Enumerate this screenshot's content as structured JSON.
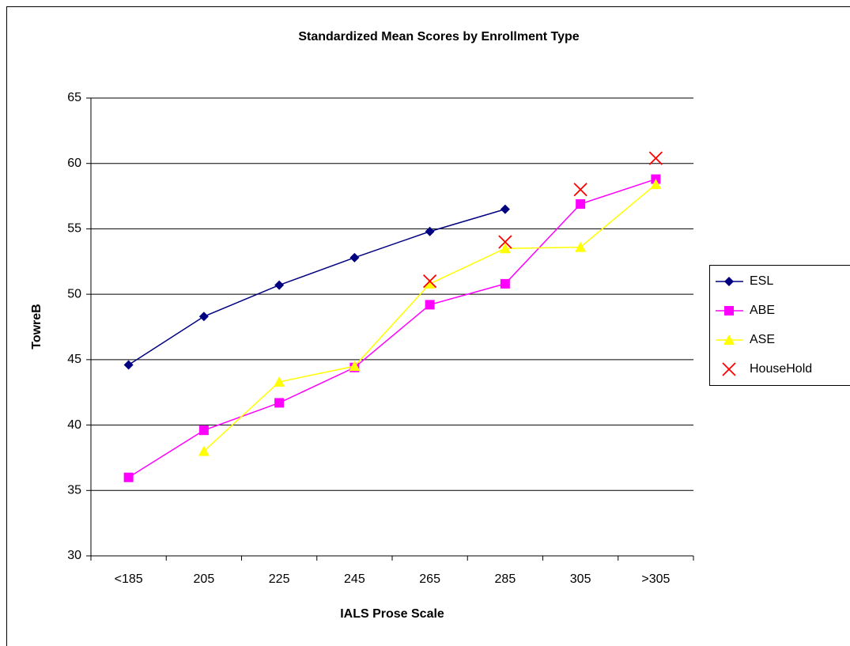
{
  "chart_data": {
    "type": "line",
    "title": "Standardized Mean Scores by Enrollment Type",
    "x_label": "IALS Prose Scale",
    "y_label": "TowreB",
    "categories": [
      "<185",
      "205",
      "225",
      "245",
      "265",
      "285",
      "305",
      ">305"
    ],
    "series": [
      {
        "name": "ESL",
        "color": "#000080",
        "marker": "diamond",
        "line": true,
        "values": [
          44.6,
          48.3,
          50.7,
          52.8,
          54.8,
          56.5,
          null,
          null
        ]
      },
      {
        "name": "ABE",
        "color": "#ff00ff",
        "marker": "square",
        "line": true,
        "values": [
          36.0,
          39.6,
          41.7,
          44.4,
          49.2,
          50.8,
          56.9,
          58.8
        ]
      },
      {
        "name": "ASE",
        "color": "#ffff00",
        "marker": "triangle",
        "line": true,
        "values": [
          null,
          38.0,
          43.3,
          44.5,
          50.8,
          53.5,
          53.6,
          58.4
        ]
      },
      {
        "name": "HouseHold",
        "color": "#ff0000",
        "marker": "x",
        "line": false,
        "values": [
          null,
          null,
          null,
          null,
          51.0,
          54.0,
          58.0,
          60.4
        ]
      }
    ],
    "ylim": [
      30,
      65
    ],
    "yticks": [
      30,
      35,
      40,
      45,
      50,
      55,
      60,
      65
    ],
    "grid": true,
    "legend": "right"
  }
}
